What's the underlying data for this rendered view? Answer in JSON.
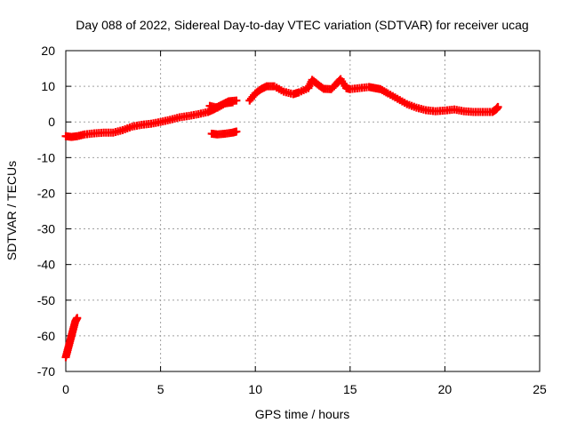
{
  "chart_data": {
    "type": "scatter",
    "title": "Day 088 of 2022, Sidereal Day-to-day VTEC variation (SDTVAR) for receiver ucag",
    "xlabel": "GPS time / hours",
    "ylabel": "SDTVAR / TECUs",
    "xlim": [
      0,
      25
    ],
    "ylim": [
      -70,
      20
    ],
    "xticks": [
      0,
      5,
      10,
      15,
      20,
      25
    ],
    "yticks": [
      -70,
      -60,
      -50,
      -40,
      -30,
      -20,
      -10,
      0,
      10,
      20
    ],
    "grid": true,
    "legend": "none",
    "marker": "plus",
    "series": [
      {
        "name": "SDTVAR",
        "color": "#ff0000",
        "points": [
          [
            0.0,
            -66
          ],
          [
            0.1,
            -64
          ],
          [
            0.2,
            -62
          ],
          [
            0.3,
            -60
          ],
          [
            0.4,
            -58
          ],
          [
            0.5,
            -56
          ],
          [
            0.6,
            -55
          ],
          [
            0.0,
            -4
          ],
          [
            0.3,
            -4.2
          ],
          [
            0.6,
            -4
          ],
          [
            1.0,
            -3.5
          ],
          [
            1.5,
            -3.2
          ],
          [
            2.0,
            -3
          ],
          [
            2.5,
            -3
          ],
          [
            3.0,
            -2.3
          ],
          [
            3.5,
            -1.3
          ],
          [
            4.0,
            -0.8
          ],
          [
            4.5,
            -0.5
          ],
          [
            5.0,
            0
          ],
          [
            5.5,
            0.6
          ],
          [
            6.0,
            1.3
          ],
          [
            6.5,
            1.7
          ],
          [
            7.0,
            2.2
          ],
          [
            7.5,
            2.8
          ],
          [
            7.8,
            3.5
          ],
          [
            8.0,
            4.2
          ],
          [
            8.3,
            5
          ],
          [
            8.6,
            5.8
          ],
          [
            9.0,
            6
          ],
          [
            7.6,
            4.5
          ],
          [
            8.0,
            4
          ],
          [
            8.4,
            5.2
          ],
          [
            8.8,
            5.5
          ],
          [
            7.7,
            -3.3
          ],
          [
            8.0,
            -3.5
          ],
          [
            8.4,
            -3.3
          ],
          [
            8.8,
            -3
          ],
          [
            9.0,
            -2.7
          ],
          [
            9.7,
            6
          ],
          [
            10.0,
            8
          ],
          [
            10.3,
            9.2
          ],
          [
            10.6,
            10
          ],
          [
            11.0,
            10
          ],
          [
            11.5,
            8.5
          ],
          [
            12.0,
            7.8
          ],
          [
            12.3,
            8.3
          ],
          [
            12.8,
            9.5
          ],
          [
            13.0,
            11.8
          ],
          [
            13.3,
            10.5
          ],
          [
            13.6,
            9.3
          ],
          [
            14.0,
            9.2
          ],
          [
            14.3,
            10.8
          ],
          [
            14.5,
            12
          ],
          [
            14.8,
            9.5
          ],
          [
            15.0,
            9.2
          ],
          [
            15.5,
            9.5
          ],
          [
            16.0,
            9.8
          ],
          [
            16.3,
            9.5
          ],
          [
            16.6,
            9.2
          ],
          [
            17.0,
            8
          ],
          [
            17.5,
            6.5
          ],
          [
            18.0,
            5
          ],
          [
            18.5,
            4
          ],
          [
            19.0,
            3.3
          ],
          [
            19.5,
            3
          ],
          [
            20.0,
            3.2
          ],
          [
            20.5,
            3.5
          ],
          [
            21.0,
            3
          ],
          [
            21.5,
            2.8
          ],
          [
            22.0,
            2.8
          ],
          [
            22.5,
            2.8
          ],
          [
            22.7,
            3.5
          ],
          [
            22.8,
            4.2
          ]
        ]
      }
    ]
  }
}
